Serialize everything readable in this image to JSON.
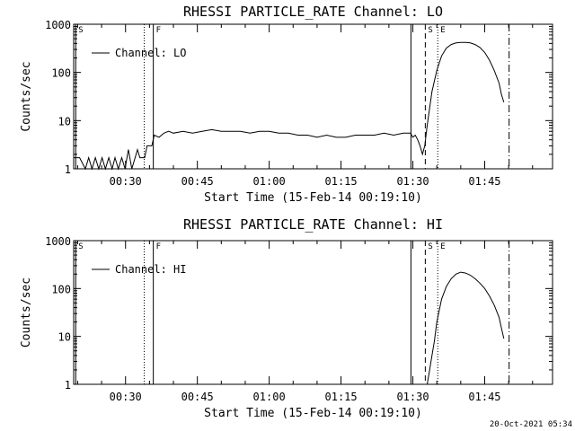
{
  "footer": {
    "timestamp": "20-Oct-2021 05:34"
  },
  "chart_data": [
    {
      "type": "line",
      "title": "RHESSI PARTICLE_RATE Channel: LO",
      "xlabel": "Start Time (15-Feb-14 00:19:10)",
      "ylabel": "Counts/sec",
      "yscale": "log",
      "ylim": [
        1,
        1000
      ],
      "xlim_minutes": [
        19.17,
        119.17
      ],
      "x_ticks": [
        {
          "label": "00:30",
          "min": 30
        },
        {
          "label": "00:45",
          "min": 45
        },
        {
          "label": "01:00",
          "min": 60
        },
        {
          "label": "01:15",
          "min": 75
        },
        {
          "label": "01:30",
          "min": 90
        },
        {
          "label": "01:45",
          "min": 105
        }
      ],
      "y_ticks": [
        {
          "label": "1",
          "v": 1
        },
        {
          "label": "10",
          "v": 10
        },
        {
          "label": "100",
          "v": 100
        },
        {
          "label": "1000",
          "v": 1000
        }
      ],
      "legend": {
        "label": "Channel: LO",
        "placement": "top-left"
      },
      "markers": [
        {
          "label": "S",
          "min": 19.6,
          "style": "solid"
        },
        {
          "label": "",
          "min": 33.9,
          "style": "dotted"
        },
        {
          "label": "F",
          "min": 35.8,
          "style": "solid"
        },
        {
          "label": "",
          "min": 89.6,
          "style": "solid"
        },
        {
          "label": "S",
          "min": 92.6,
          "style": "dashed"
        },
        {
          "label": "E",
          "min": 95.2,
          "style": "dotted"
        },
        {
          "label": "",
          "min": 110.1,
          "style": "dashdot"
        }
      ],
      "series": [
        {
          "name": "Channel: LO",
          "x": [
            19.2,
            20.4,
            21.6,
            22.3,
            23.0,
            23.7,
            24.4,
            25.1,
            25.8,
            26.5,
            27.2,
            27.8,
            28.5,
            29.2,
            29.9,
            30.6,
            31.3,
            32.0,
            32.5,
            33.0,
            33.5,
            34.0,
            34.5,
            35.0,
            35.5,
            36.0,
            37.0,
            38.0,
            39.0,
            40.0,
            42.0,
            44.0,
            46.0,
            48.0,
            50.0,
            52.0,
            54.0,
            56.0,
            58.0,
            60.0,
            62.0,
            64.0,
            66.0,
            68.0,
            70.0,
            72.0,
            74.0,
            76.0,
            78.0,
            80.0,
            82.0,
            84.0,
            86.0,
            88.0,
            89.5,
            90.0,
            90.5,
            91.0,
            91.5,
            92.0,
            92.5,
            93.0,
            94.0,
            95.0,
            96.0,
            97.0,
            98.0,
            99.0,
            100.0,
            101.0,
            102.0,
            103.0,
            104.0,
            105.0,
            106.0,
            107.0,
            108.0,
            108.5,
            109.0
          ],
          "y": [
            1.7,
            1.7,
            1,
            1.7,
            1,
            1.7,
            1,
            1.7,
            1,
            1.7,
            1,
            1.7,
            1,
            1.7,
            1,
            2.5,
            1,
            1.7,
            2.5,
            1.7,
            1.7,
            1.7,
            3,
            3,
            3,
            5,
            4.5,
            5.5,
            6,
            5.5,
            6,
            5.5,
            6,
            6.5,
            6,
            6,
            6,
            5.5,
            6,
            6,
            5.5,
            5.5,
            5,
            5,
            4.5,
            5,
            4.5,
            4.5,
            5,
            5,
            5,
            5.5,
            5,
            5.5,
            5.5,
            4.5,
            5,
            4,
            3,
            2,
            3,
            8,
            40,
            110,
            220,
            320,
            380,
            410,
            420,
            420,
            410,
            380,
            330,
            260,
            180,
            110,
            60,
            35,
            24
          ]
        }
      ]
    },
    {
      "type": "line",
      "title": "RHESSI PARTICLE_RATE Channel: HI",
      "xlabel": "Start Time (15-Feb-14 00:19:10)",
      "ylabel": "Counts/sec",
      "yscale": "log",
      "ylim": [
        1,
        1000
      ],
      "xlim_minutes": [
        19.17,
        119.17
      ],
      "x_ticks": [
        {
          "label": "00:30",
          "min": 30
        },
        {
          "label": "00:45",
          "min": 45
        },
        {
          "label": "01:00",
          "min": 60
        },
        {
          "label": "01:15",
          "min": 75
        },
        {
          "label": "01:30",
          "min": 90
        },
        {
          "label": "01:45",
          "min": 105
        }
      ],
      "y_ticks": [
        {
          "label": "1",
          "v": 1
        },
        {
          "label": "10",
          "v": 10
        },
        {
          "label": "100",
          "v": 100
        },
        {
          "label": "1000",
          "v": 1000
        }
      ],
      "legend": {
        "label": "Channel: HI",
        "placement": "top-left"
      },
      "markers": [
        {
          "label": "S",
          "min": 19.6,
          "style": "solid"
        },
        {
          "label": "",
          "min": 33.9,
          "style": "dotted"
        },
        {
          "label": "F",
          "min": 35.8,
          "style": "solid"
        },
        {
          "label": "",
          "min": 89.6,
          "style": "solid"
        },
        {
          "label": "S",
          "min": 92.6,
          "style": "dashed"
        },
        {
          "label": "E",
          "min": 95.2,
          "style": "dotted"
        },
        {
          "label": "",
          "min": 110.1,
          "style": "dashdot"
        }
      ],
      "series": [
        {
          "name": "Channel: HI",
          "x": [
            93.0,
            93.5,
            94.0,
            94.5,
            95.0,
            96.0,
            97.0,
            98.0,
            99.0,
            100.0,
            101.0,
            102.0,
            103.0,
            104.0,
            105.0,
            106.0,
            107.0,
            108.0,
            108.5,
            109.0
          ],
          "y": [
            1,
            2,
            4,
            8,
            20,
            60,
            110,
            160,
            200,
            220,
            210,
            190,
            160,
            130,
            100,
            70,
            45,
            25,
            15,
            9
          ]
        }
      ]
    }
  ]
}
